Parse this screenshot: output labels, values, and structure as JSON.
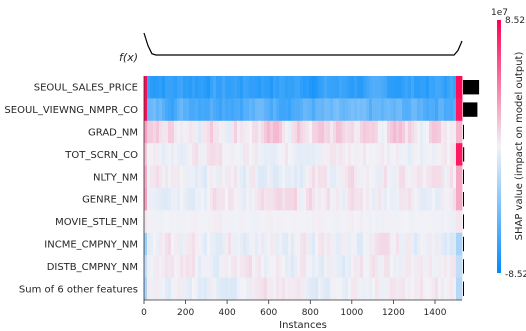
{
  "chart_data": {
    "type": "heatmap",
    "fx_label": "f(x)",
    "xlabel": "Instances",
    "x_ticks": [
      0,
      200,
      400,
      600,
      800,
      1000,
      1200,
      1400
    ],
    "x_max": 1530,
    "features": [
      "SEOUL_SALES_PRICE",
      "SEOUL_VIEWNG_NMPR_CO",
      "GRAD_NM",
      "TOT_SCRN_CO",
      "NLTY_NM",
      "GENRE_NM",
      "MOVIE_STLE_NM",
      "INCME_CMPNY_NM",
      "DISTB_CMPNY_NM",
      "Sum of 6 other features"
    ],
    "global_importance": [
      0.95,
      0.85,
      0.04,
      0.07,
      0.02,
      0.02,
      0.01,
      0.02,
      0.02,
      0.03
    ],
    "row_profile": [
      {
        "base": -0.78,
        "noise": 0.08,
        "left": 0.95,
        "right": 0.95
      },
      {
        "base": -0.62,
        "noise": 0.1,
        "left": 0.95,
        "right": 0.9
      },
      {
        "base": 0.1,
        "noise": 0.12,
        "left": 0.35,
        "right": 0.25
      },
      {
        "base": 0.02,
        "noise": 0.06,
        "left": 0.2,
        "right": 0.9
      },
      {
        "base": 0.01,
        "noise": 0.08,
        "left": 0.3,
        "right": 0.3
      },
      {
        "base": 0.03,
        "noise": 0.08,
        "left": 0.35,
        "right": 0.3
      },
      {
        "base": 0.0,
        "noise": 0.02,
        "left": 0.05,
        "right": 0.05
      },
      {
        "base": -0.01,
        "noise": 0.08,
        "left": -0.35,
        "right": -0.3
      },
      {
        "base": 0.0,
        "noise": 0.07,
        "left": -0.2,
        "right": -0.2
      },
      {
        "base": 0.0,
        "noise": 0.07,
        "left": -0.3,
        "right": -0.25
      }
    ],
    "colorbar": {
      "label": "SHAP value (impact on model output)",
      "max_label": "8.52",
      "min_label": "-8.52",
      "exponent": "1e7",
      "high_color": "#ff0051",
      "low_color": "#008bfb"
    }
  }
}
